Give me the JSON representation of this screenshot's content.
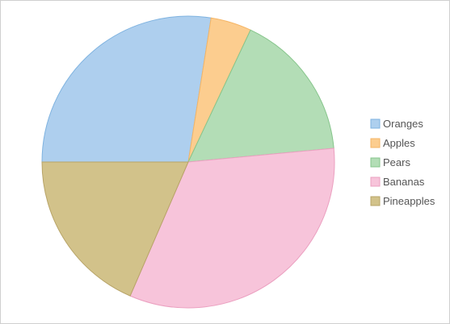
{
  "chart_data": {
    "type": "pie",
    "title": "",
    "categories": [
      "Oranges",
      "Apples",
      "Pears",
      "Bananas",
      "Pineapples"
    ],
    "values": [
      27.5,
      4.5,
      16.5,
      33.0,
      18.5
    ],
    "colors": [
      "#aecfee",
      "#fccd8f",
      "#b3ddb6",
      "#f7c4da",
      "#d2c28a"
    ],
    "stroke_colors": [
      "#7fb3e0",
      "#f5b565",
      "#86c58b",
      "#eba0c0",
      "#b8a468"
    ],
    "start_angle_deg": -90,
    "legend": {
      "position": "right",
      "items": [
        "Oranges",
        "Apples",
        "Pears",
        "Bananas",
        "Pineapples"
      ]
    }
  }
}
